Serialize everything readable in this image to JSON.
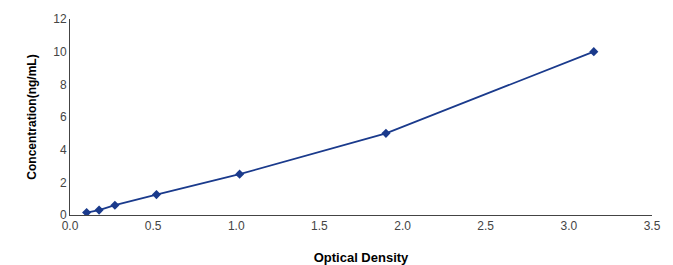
{
  "chart_data": {
    "type": "line",
    "x": [
      0.1,
      0.175,
      0.27,
      0.52,
      1.02,
      1.9,
      3.15
    ],
    "values": [
      0.15,
      0.3,
      0.6,
      1.25,
      2.5,
      5.0,
      10.0
    ],
    "color": "#1A3A8C",
    "marker": "diamond",
    "line_style": "solid",
    "xlabel": "Optical Density",
    "ylabel": "Concentration(ng/mL)",
    "xlim": [
      0,
      3.5
    ],
    "ylim": [
      0,
      12
    ],
    "xticks": [
      {
        "value": 0,
        "label": "0.0"
      },
      0.5,
      {
        "value": 1,
        "label": "1.0"
      },
      1.5,
      {
        "value": 2,
        "label": "2.0"
      },
      2.5,
      {
        "value": 3,
        "label": "3.0"
      },
      3.5
    ],
    "yticks": [
      0,
      2,
      4,
      6,
      8,
      10,
      12
    ],
    "grid": false
  }
}
